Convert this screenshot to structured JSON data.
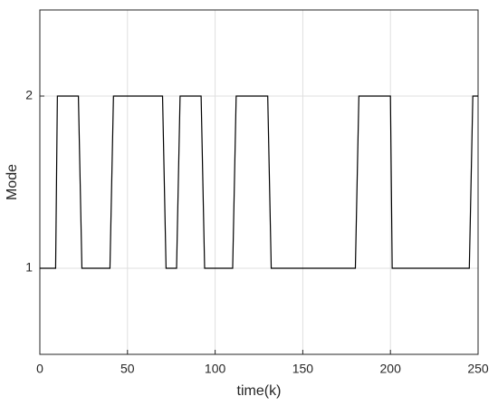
{
  "chart_data": {
    "type": "line",
    "x_label": "time(k)",
    "y_label": "Mode",
    "x": [
      0,
      9,
      10,
      22,
      24,
      40,
      42,
      70,
      72,
      78,
      80,
      92,
      94,
      110,
      112,
      130,
      132,
      180,
      182,
      200,
      201,
      245,
      247,
      250
    ],
    "series": [
      {
        "color": "#000000",
        "values": [
          1,
          1,
          2,
          2,
          1,
          1,
          2,
          2,
          1,
          1,
          2,
          2,
          1,
          1,
          2,
          2,
          1,
          1,
          2,
          2,
          1,
          1,
          2,
          2
        ]
      }
    ],
    "xlim": [
      0,
      250
    ],
    "xticks": [
      0,
      50,
      100,
      150,
      200,
      250
    ],
    "ylim": [
      0.5,
      2.5
    ],
    "yticks": [
      1,
      2
    ],
    "grid": true
  }
}
